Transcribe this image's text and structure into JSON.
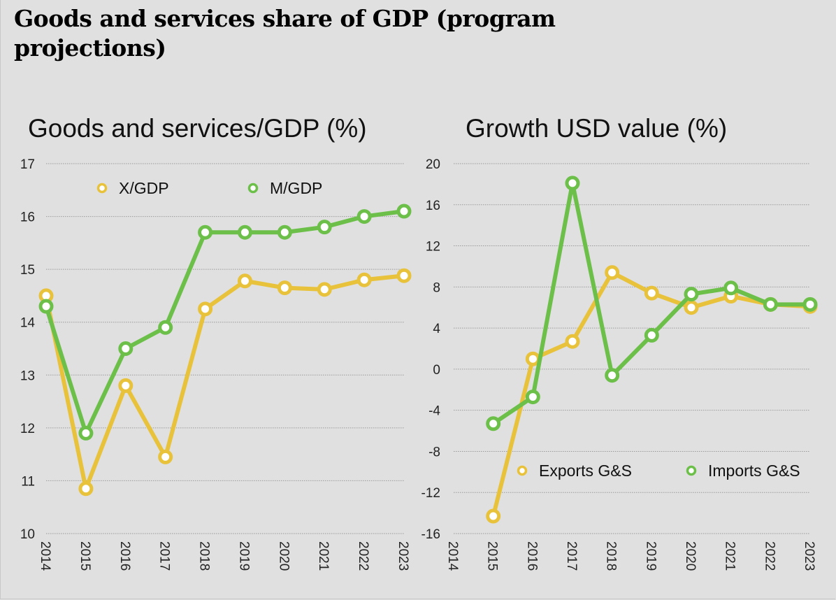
{
  "page_title": "Goods and services share of GDP (program projections)",
  "colors": {
    "yellow": "#e8c23a",
    "green": "#6cc04a",
    "grid": "#9a9a9a",
    "background": "#e0e0e0"
  },
  "chart_data": [
    {
      "type": "line",
      "title": "Goods and services/GDP (%)",
      "xlabel": "",
      "ylabel": "",
      "x": [
        "2014",
        "2015",
        "2016",
        "2017",
        "2018",
        "2019",
        "2020",
        "2021",
        "2022",
        "2023"
      ],
      "ylim": [
        10,
        17
      ],
      "yticks": [
        "10",
        "11",
        "12",
        "13",
        "14",
        "15",
        "16",
        "17"
      ],
      "grid": true,
      "legend_position": "top",
      "series": [
        {
          "name": "X/GDP",
          "color": "#e8c23a",
          "values": [
            14.5,
            10.85,
            12.8,
            11.45,
            14.25,
            14.78,
            14.65,
            14.62,
            14.8,
            14.88
          ]
        },
        {
          "name": "M/GDP",
          "color": "#6cc04a",
          "values": [
            14.3,
            11.9,
            13.5,
            13.9,
            15.7,
            15.7,
            15.7,
            15.8,
            16.0,
            16.1
          ]
        }
      ]
    },
    {
      "type": "line",
      "title": "Growth USD value (%)",
      "xlabel": "",
      "ylabel": "",
      "x": [
        "2014",
        "2015",
        "2016",
        "2017",
        "2018",
        "2019",
        "2020",
        "2021",
        "2022",
        "2023"
      ],
      "ylim": [
        -16,
        20
      ],
      "yticks": [
        "-16",
        "-12",
        "-8",
        "-4",
        "0",
        "4",
        "8",
        "12",
        "16",
        "20"
      ],
      "grid": true,
      "legend_position": "bottom-right",
      "series": [
        {
          "name": "Exports G&S",
          "color": "#e8c23a",
          "values": [
            null,
            -14.3,
            1.0,
            2.7,
            9.4,
            7.4,
            6.0,
            7.1,
            6.3,
            6.1
          ]
        },
        {
          "name": "Imports G&S",
          "color": "#6cc04a",
          "values": [
            null,
            -5.3,
            -2.7,
            18.1,
            -0.6,
            3.3,
            7.3,
            7.9,
            6.3,
            6.3
          ]
        }
      ]
    }
  ]
}
